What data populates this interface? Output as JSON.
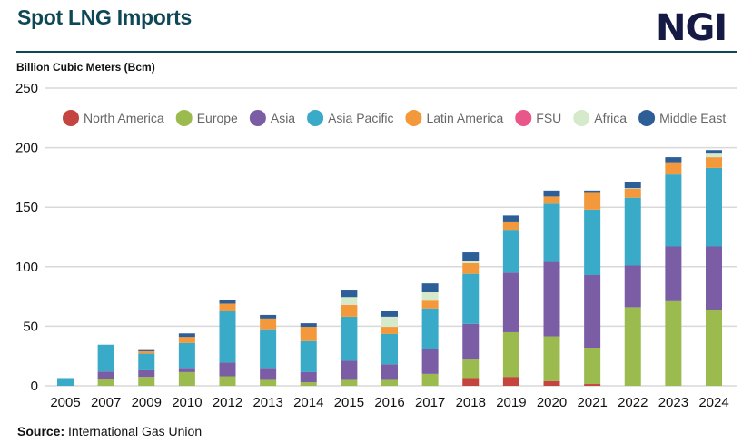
{
  "header": {
    "title": "Spot LNG Imports",
    "logo_text": "NGI"
  },
  "footer": {
    "source_label": "Source:",
    "source_text": "International Gas Union"
  },
  "chart_data": {
    "type": "bar",
    "stacked": true,
    "title": "Spot LNG Imports",
    "ylabel": "Billion Cubic Meters (Bcm)",
    "xlabel": "",
    "ylim": [
      0,
      250
    ],
    "yticks": [
      0,
      50,
      100,
      150,
      200,
      250
    ],
    "grid": true,
    "legend_position": "top",
    "categories": [
      "2005",
      "2007",
      "2009",
      "2010",
      "2012",
      "2013",
      "2014",
      "2015",
      "2016",
      "2017",
      "2018",
      "2019",
      "2020",
      "2021",
      "2022",
      "2023",
      "2024"
    ],
    "series": [
      {
        "name": "North America",
        "color": "#c4443f",
        "values": [
          0,
          0,
          0,
          0,
          0,
          0,
          0,
          0,
          0,
          0,
          6.5,
          7.5,
          4,
          1.5,
          0,
          0,
          0
        ]
      },
      {
        "name": "Europe",
        "color": "#9bbb4f",
        "values": [
          0,
          5.5,
          7.5,
          11.5,
          8,
          5,
          3,
          5,
          5,
          10,
          15.5,
          37.5,
          37.5,
          30.5,
          66,
          71,
          64
        ]
      },
      {
        "name": "Asia",
        "color": "#7b5da6",
        "values": [
          0,
          6.5,
          5.5,
          3.5,
          11.5,
          10,
          8.5,
          16,
          13,
          20.5,
          30,
          50,
          62.5,
          61,
          35,
          46,
          53
        ]
      },
      {
        "name": "Asia Pacific",
        "color": "#39aac8",
        "values": [
          6.5,
          22.5,
          14,
          21,
          43,
          32.5,
          26,
          37,
          25.5,
          34.5,
          42,
          36,
          49,
          55,
          57,
          60.5,
          66
        ]
      },
      {
        "name": "Latin America",
        "color": "#f4993b",
        "values": [
          0,
          0,
          2,
          5,
          6.5,
          9,
          12,
          10,
          6,
          6.5,
          9,
          7,
          6,
          14,
          7.5,
          9.5,
          9
        ]
      },
      {
        "name": "FSU",
        "color": "#e8568a",
        "values": [
          0,
          0,
          0,
          0,
          0,
          0,
          0,
          0,
          0,
          0,
          0,
          0,
          0,
          0,
          0,
          0,
          0
        ]
      },
      {
        "name": "Africa",
        "color": "#d4eacb",
        "values": [
          0,
          0,
          0,
          0,
          0,
          0,
          0,
          6.5,
          8.5,
          7,
          2,
          0,
          0,
          0,
          0.5,
          0,
          3
        ]
      },
      {
        "name": "Middle East",
        "color": "#2e5e98",
        "values": [
          0,
          0,
          1,
          3,
          3,
          3,
          3,
          5.5,
          4.5,
          7.5,
          7,
          5,
          5,
          2,
          5,
          5,
          3
        ]
      }
    ]
  }
}
